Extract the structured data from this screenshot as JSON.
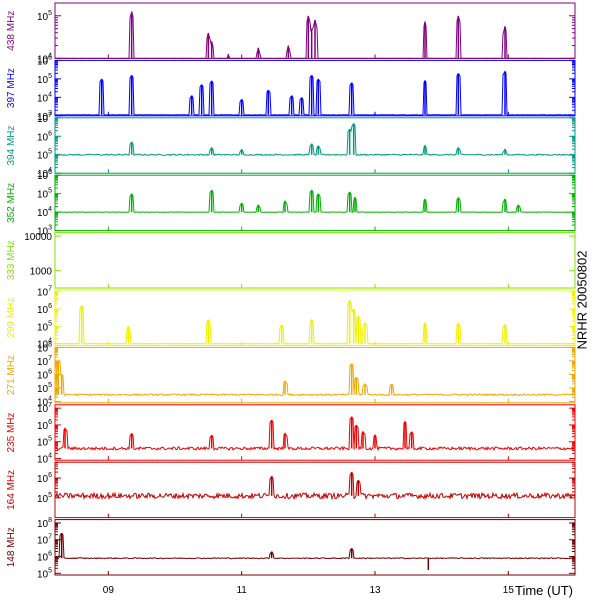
{
  "chart_data": {
    "type": "line",
    "side_title": "NRHR 20050802",
    "x_axis": {
      "label": "Time (UT)",
      "range_hours": [
        8.2,
        16.0
      ],
      "ticks": [
        {
          "value": 9,
          "label": "09"
        },
        {
          "value": 11,
          "label": "11"
        },
        {
          "value": 13,
          "label": "13"
        },
        {
          "value": 15,
          "label": "15"
        }
      ]
    },
    "panels": [
      {
        "name": "438 MHz",
        "color": "#7f007f",
        "scale": "log",
        "ylim_exp": [
          4,
          5.3
        ],
        "baseline_exp": 4.0,
        "noise": 0.01,
        "tick_labels": [
          {
            "exp": 4,
            "text": "10",
            "sup": "4"
          },
          {
            "exp": 5,
            "text": "10",
            "sup": "5"
          }
        ],
        "spikes": [
          [
            9.35,
            5.1
          ],
          [
            10.5,
            4.6
          ],
          [
            10.55,
            4.4
          ],
          [
            10.8,
            4.1
          ],
          [
            11.25,
            4.25
          ],
          [
            11.7,
            4.3
          ],
          [
            12.0,
            5.0
          ],
          [
            12.05,
            4.7
          ],
          [
            12.1,
            4.9
          ],
          [
            13.75,
            4.85
          ],
          [
            14.25,
            5.0
          ],
          [
            14.95,
            4.75
          ]
        ]
      },
      {
        "name": "397 MHz",
        "color": "#0000ff",
        "scale": "log",
        "ylim_exp": [
          3,
          6
        ],
        "baseline_exp": 3.05,
        "noise": 0.02,
        "tick_labels": [
          {
            "exp": 3,
            "text": "10",
            "sup": "3"
          },
          {
            "exp": 4,
            "text": "10",
            "sup": "4"
          },
          {
            "exp": 5,
            "text": "10",
            "sup": "5"
          },
          {
            "exp": 6,
            "text": "10",
            "sup": "6"
          }
        ],
        "spikes": [
          [
            8.9,
            5.0
          ],
          [
            9.35,
            5.2
          ],
          [
            10.25,
            4.1
          ],
          [
            10.4,
            4.7
          ],
          [
            10.55,
            4.9
          ],
          [
            11.0,
            3.9
          ],
          [
            11.4,
            4.4
          ],
          [
            11.75,
            4.1
          ],
          [
            11.9,
            4.0
          ],
          [
            12.05,
            5.2
          ],
          [
            12.15,
            5.0
          ],
          [
            12.65,
            4.8
          ],
          [
            13.75,
            4.9
          ],
          [
            14.25,
            5.3
          ],
          [
            14.95,
            5.4
          ]
        ]
      },
      {
        "name": "394 MHz",
        "color": "#009980",
        "scale": "log",
        "ylim_exp": [
          4,
          7
        ],
        "baseline_exp": 5.0,
        "noise": 0.07,
        "tick_labels": [
          {
            "exp": 4,
            "text": "10",
            "sup": "4"
          },
          {
            "exp": 5,
            "text": "10",
            "sup": "5"
          },
          {
            "exp": 6,
            "text": "10",
            "sup": "6"
          },
          {
            "exp": 7,
            "text": "10",
            "sup": "7"
          }
        ],
        "spikes": [
          [
            9.35,
            5.7
          ],
          [
            10.55,
            5.4
          ],
          [
            11.0,
            5.3
          ],
          [
            12.05,
            5.6
          ],
          [
            12.15,
            5.5
          ],
          [
            12.62,
            6.4
          ],
          [
            12.68,
            6.7
          ],
          [
            13.75,
            5.5
          ],
          [
            14.25,
            5.4
          ],
          [
            14.95,
            5.3
          ]
        ]
      },
      {
        "name": "352 MHz",
        "color": "#00b000",
        "scale": "log",
        "ylim_exp": [
          3,
          6
        ],
        "baseline_exp": 4.0,
        "noise": 0.02,
        "tick_labels": [
          {
            "exp": 3,
            "text": "10",
            "sup": "3"
          },
          {
            "exp": 4,
            "text": "10",
            "sup": "4"
          },
          {
            "exp": 5,
            "text": "10",
            "sup": "5"
          },
          {
            "exp": 6,
            "text": "10",
            "sup": "6"
          }
        ],
        "spikes": [
          [
            9.35,
            5.0
          ],
          [
            10.55,
            5.2
          ],
          [
            11.0,
            4.5
          ],
          [
            11.25,
            4.4
          ],
          [
            11.65,
            4.6
          ],
          [
            12.05,
            5.2
          ],
          [
            12.15,
            5.0
          ],
          [
            12.62,
            5.1
          ],
          [
            12.7,
            4.8
          ],
          [
            13.75,
            4.7
          ],
          [
            14.25,
            4.8
          ],
          [
            14.95,
            4.7
          ],
          [
            15.15,
            4.4
          ]
        ]
      },
      {
        "name": "333 MHz",
        "color": "#80e600",
        "scale": "log",
        "ylim_exp": [
          2.5,
          4.1
        ],
        "baseline_exp": null,
        "noise": 0,
        "tick_labels": [
          {
            "exp": 3,
            "text": "1000",
            "sup": ""
          },
          {
            "exp": 4,
            "text": "10000",
            "sup": ""
          }
        ],
        "spikes": []
      },
      {
        "name": "299 MHz",
        "color": "#f0f000",
        "scale": "log",
        "ylim_exp": [
          3.9,
          7.1
        ],
        "baseline_exp": 4.0,
        "noise": 0.01,
        "tick_labels": [
          {
            "exp": 4,
            "text": "10",
            "sup": "4"
          },
          {
            "exp": 5,
            "text": "10",
            "sup": "5"
          },
          {
            "exp": 6,
            "text": "10",
            "sup": "6"
          },
          {
            "exp": 7,
            "text": "10",
            "sup": "7"
          }
        ],
        "spikes": [
          [
            8.6,
            6.2
          ],
          [
            9.3,
            5.0
          ],
          [
            10.5,
            5.4
          ],
          [
            11.6,
            5.1
          ],
          [
            12.05,
            5.4
          ],
          [
            12.62,
            6.5
          ],
          [
            12.68,
            6.0
          ],
          [
            12.75,
            5.6
          ],
          [
            12.85,
            5.2
          ],
          [
            13.75,
            5.2
          ],
          [
            14.25,
            5.2
          ],
          [
            14.95,
            5.1
          ]
        ]
      },
      {
        "name": "271 MHz",
        "color": "#f0a800",
        "scale": "log",
        "ylim_exp": [
          3.9,
          8
        ],
        "baseline_exp": 4.5,
        "noise": 0.12,
        "tick_labels": [
          {
            "exp": 4,
            "text": "10",
            "sup": "4"
          },
          {
            "exp": 5,
            "text": "10",
            "sup": "5"
          },
          {
            "exp": 6,
            "text": "10",
            "sup": "6"
          },
          {
            "exp": 7,
            "text": "10",
            "sup": "7"
          },
          {
            "exp": 8,
            "text": "10",
            "sup": "8"
          }
        ],
        "spikes": [
          [
            8.25,
            7.0
          ],
          [
            8.3,
            6.0
          ],
          [
            11.65,
            5.5
          ],
          [
            12.65,
            6.8
          ],
          [
            12.72,
            5.8
          ],
          [
            12.85,
            5.3
          ],
          [
            13.25,
            5.3
          ]
        ]
      },
      {
        "name": "235 MHz",
        "color": "#ee0000",
        "scale": "log",
        "ylim_exp": [
          3.9,
          7.2
        ],
        "baseline_exp": 4.6,
        "noise": 0.18,
        "tick_labels": [
          {
            "exp": 4,
            "text": "10",
            "sup": "4"
          },
          {
            "exp": 5,
            "text": "10",
            "sup": "5"
          },
          {
            "exp": 6,
            "text": "10",
            "sup": "6"
          },
          {
            "exp": 7,
            "text": "10",
            "sup": "7"
          }
        ],
        "spikes": [
          [
            8.35,
            5.8
          ],
          [
            9.35,
            5.5
          ],
          [
            10.55,
            5.4
          ],
          [
            11.45,
            6.3
          ],
          [
            11.65,
            5.5
          ],
          [
            12.65,
            6.5
          ],
          [
            12.72,
            6.0
          ],
          [
            12.82,
            5.6
          ],
          [
            13.0,
            5.4
          ],
          [
            13.45,
            6.2
          ],
          [
            13.55,
            5.6
          ]
        ]
      },
      {
        "name": "164 MHz",
        "color": "#c00000",
        "scale": "log",
        "ylim_exp": [
          4,
          6.8
        ],
        "baseline_exp": 5.1,
        "noise": 0.28,
        "tick_labels": [
          {
            "exp": 5,
            "text": "10",
            "sup": "5"
          },
          {
            "exp": 6,
            "text": "10",
            "sup": "6"
          }
        ],
        "spikes": [
          [
            11.45,
            6.1
          ],
          [
            12.65,
            6.3
          ],
          [
            12.75,
            5.9
          ]
        ]
      },
      {
        "name": "148 MHz",
        "color": "#700000",
        "scale": "log",
        "ylim_exp": [
          4.9,
          8.2
        ],
        "baseline_exp": 5.9,
        "noise": 0.06,
        "tick_labels": [
          {
            "exp": 5,
            "text": "10",
            "sup": "5"
          },
          {
            "exp": 6,
            "text": "10",
            "sup": "6"
          },
          {
            "exp": 7,
            "text": "10",
            "sup": "7"
          },
          {
            "exp": 8,
            "text": "10",
            "sup": "8"
          }
        ],
        "spikes": [
          [
            8.3,
            7.4
          ],
          [
            11.45,
            6.3
          ],
          [
            12.65,
            6.5
          ],
          [
            13.8,
            5.2
          ]
        ]
      }
    ]
  }
}
